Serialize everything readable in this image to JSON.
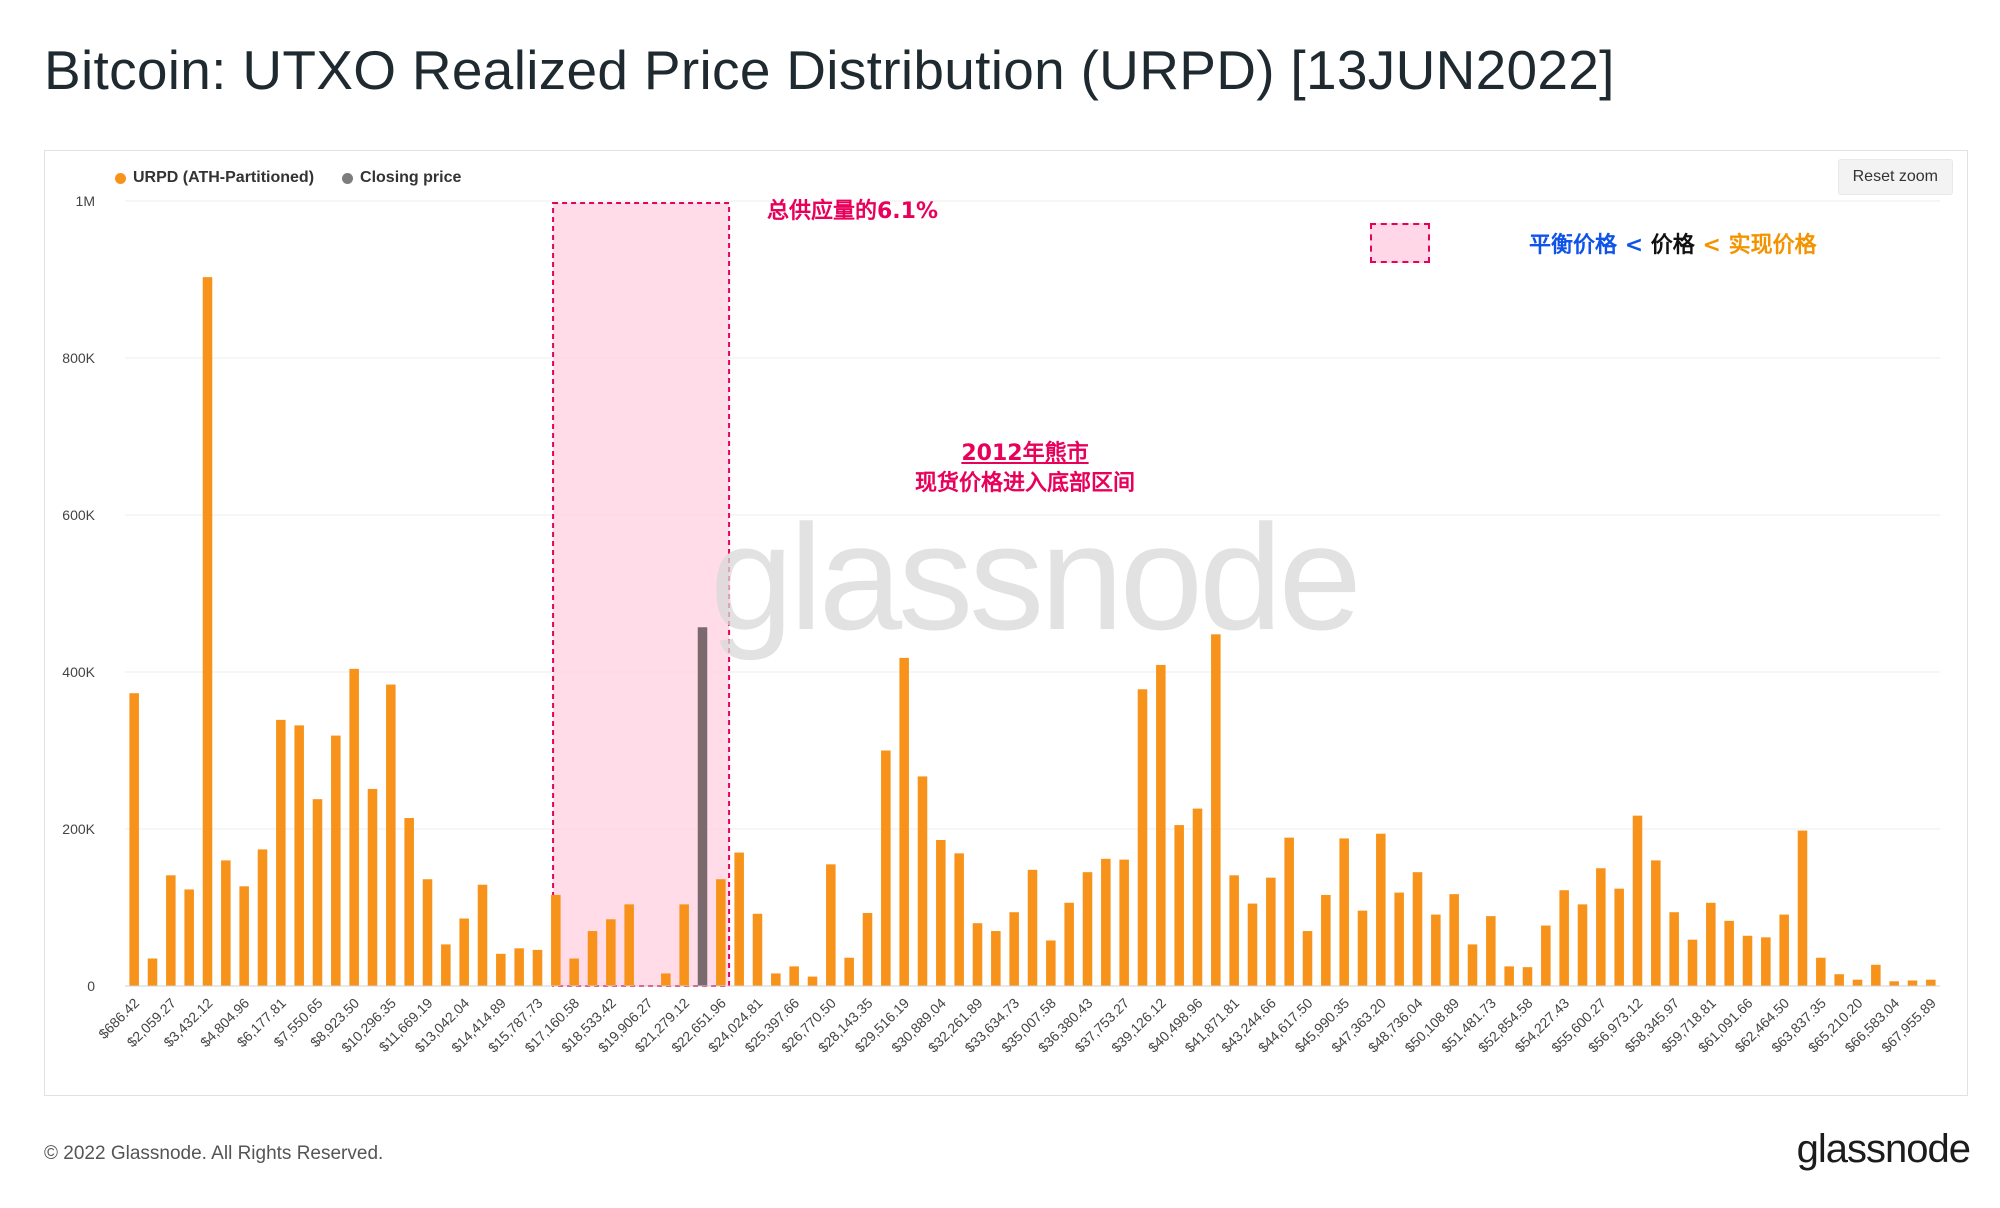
{
  "title": "Bitcoin: UTXO Realized Price Distribution (URPD) [13JUN2022]",
  "reset_zoom_label": "Reset zoom",
  "watermark": "glassnode",
  "copyright": "© 2022 Glassnode. All Rights Reserved.",
  "brand": "glassnode",
  "annotations": {
    "supply": "总供应量的6.1%",
    "bear_line1": "2012年熊市",
    "bear_line2": "现货价格进入底部区间",
    "eq_balanced": "平衡价格",
    "eq_lt1": "<",
    "eq_price": "价格",
    "eq_lt2": "<",
    "eq_realized": "实现价格"
  },
  "colors": {
    "urpd": "#f7931a",
    "closing": "#7a6a6e",
    "highlight_fill": "#ffd6e4",
    "highlight_border": "#e8005a",
    "eq_blue": "#1053e8",
    "eq_orange": "#f39300"
  },
  "chart_data": {
    "type": "bar",
    "ylim": [
      0,
      1000000
    ],
    "y_ticks": [
      {
        "value": 0,
        "label": "0"
      },
      {
        "value": 200000,
        "label": "200K"
      },
      {
        "value": 400000,
        "label": "400K"
      },
      {
        "value": 600000,
        "label": "600K"
      },
      {
        "value": 800000,
        "label": "800K"
      },
      {
        "value": 1000000,
        "label": "1M"
      }
    ],
    "x_tick_labels": [
      "$686.42",
      "$2,059.27",
      "$3,432.12",
      "$4,804.96",
      "$6,177.81",
      "$7,550.65",
      "$8,923.50",
      "$10,296.35",
      "$11,669.19",
      "$13,042.04",
      "$14,414.89",
      "$15,787.73",
      "$17,160.58",
      "$18,533.42",
      "$19,906.27",
      "$21,279.12",
      "$22,651.96",
      "$24,024.81",
      "$25,397.66",
      "$26,770.50",
      "$28,143.35",
      "$29,516.19",
      "$30,889.04",
      "$32,261.89",
      "$33,634.73",
      "$35,007.58",
      "$36,380.43",
      "$37,753.27",
      "$39,126.12",
      "$40,498.96",
      "$41,871.81",
      "$43,244.66",
      "$44,617.50",
      "$45,990.35",
      "$47,363.20",
      "$48,736.04",
      "$50,108.89",
      "$51,481.73",
      "$52,854.58",
      "$54,227.43",
      "$55,600.27",
      "$56,973.12",
      "$58,345.97",
      "$59,718.81",
      "$61,091.66",
      "$62,464.50",
      "$63,837.35",
      "$65,210.20",
      "$66,583.04",
      "$67,955.89"
    ],
    "series": [
      {
        "name": "URPD (ATH-Partitioned)",
        "values": [
          373000,
          35000,
          141000,
          123000,
          903000,
          160000,
          127000,
          174000,
          339000,
          332000,
          238000,
          319000,
          404000,
          251000,
          384000,
          214000,
          136000,
          53000,
          86000,
          129000,
          41000,
          48000,
          46000,
          116000,
          35000,
          70000,
          85000,
          104000,
          0,
          16000,
          104000,
          0,
          136000,
          170000,
          92000,
          16000,
          25000,
          12000,
          155000,
          36000,
          93000,
          300000,
          418000,
          267000,
          186000,
          169000,
          80000,
          70000,
          94000,
          148000,
          58000,
          106000,
          145000,
          162000,
          161000,
          378000,
          409000,
          205000,
          226000,
          448000,
          141000,
          105000,
          138000,
          189000,
          70000,
          116000,
          188000,
          96000,
          194000,
          119000,
          145000,
          91000,
          117000,
          53000,
          89000,
          25000,
          24000,
          77000,
          122000,
          104000,
          150000,
          124000,
          217000,
          160000,
          94000,
          59000,
          106000,
          83000,
          64000,
          62000,
          91000,
          198000,
          36000,
          15000,
          8000,
          27000,
          6000,
          7000,
          8000
        ]
      },
      {
        "name": "Closing price",
        "values": [
          0,
          0,
          0,
          0,
          0,
          0,
          0,
          0,
          0,
          0,
          0,
          0,
          0,
          0,
          0,
          0,
          0,
          0,
          0,
          0,
          0,
          0,
          0,
          0,
          0,
          0,
          0,
          0,
          0,
          0,
          0,
          457000,
          0,
          0,
          0,
          0,
          0,
          0,
          0,
          0,
          0,
          0,
          0,
          0,
          0,
          0,
          0,
          0,
          0,
          0,
          0,
          0,
          0,
          0,
          0,
          0,
          0,
          0,
          0,
          0,
          0,
          0,
          0,
          0,
          0,
          0,
          0,
          0,
          0,
          0,
          0,
          0,
          0,
          0,
          0,
          0,
          0,
          0,
          0,
          0,
          0,
          0,
          0,
          0,
          0,
          0,
          0,
          0,
          0,
          0,
          0,
          0,
          0,
          0,
          0,
          0,
          0,
          0,
          0
        ]
      }
    ],
    "highlight_range_index": [
      23,
      32
    ]
  }
}
